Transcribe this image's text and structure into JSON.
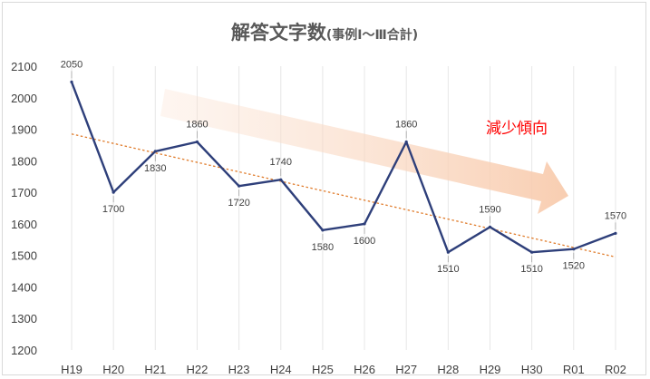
{
  "chart_data": {
    "type": "line",
    "title": "解答文字数",
    "subtitle": "(事例Ⅰ～Ⅲ合計)",
    "categories": [
      "H19",
      "H20",
      "H21",
      "H22",
      "H23",
      "H24",
      "H25",
      "H26",
      "H27",
      "H28",
      "H29",
      "H30",
      "R01",
      "R02"
    ],
    "series": [
      {
        "values": [
          2050,
          1700,
          1830,
          1860,
          1720,
          1740,
          1580,
          1600,
          1860,
          1510,
          1590,
          1510,
          1520,
          1570
        ]
      }
    ],
    "trendline": {
      "style": "dotted",
      "type": "linear",
      "start": 1885,
      "end": 1495
    },
    "ylim": [
      1200,
      2100
    ],
    "yticks": [
      1200,
      1300,
      1400,
      1500,
      1600,
      1700,
      1800,
      1900,
      2000,
      2100
    ],
    "grid": "vertical",
    "annotation": {
      "text": "減少傾向",
      "arrow_direction": "down-right"
    },
    "colors": {
      "line": "#2e3f7a",
      "trend": "#e07b2a",
      "arrow": "#fbe4d5",
      "annotation": "#ff0000"
    }
  }
}
